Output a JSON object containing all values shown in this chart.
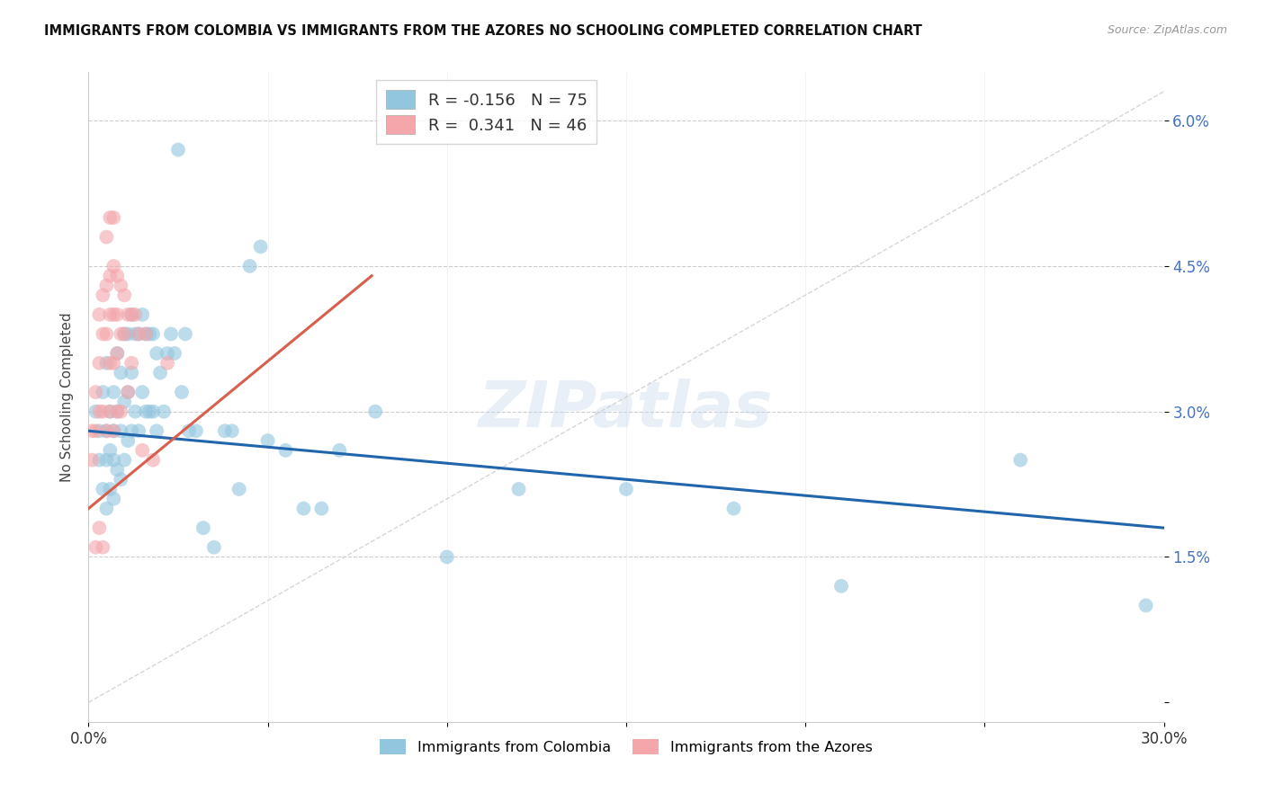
{
  "title": "IMMIGRANTS FROM COLOMBIA VS IMMIGRANTS FROM THE AZORES NO SCHOOLING COMPLETED CORRELATION CHART",
  "source": "Source: ZipAtlas.com",
  "ylabel": "No Schooling Completed",
  "ytick_vals": [
    0.0,
    0.015,
    0.03,
    0.045,
    0.06
  ],
  "ytick_labels": [
    "",
    "1.5%",
    "3.0%",
    "4.5%",
    "6.0%"
  ],
  "xtick_vals": [
    0.0,
    0.05,
    0.1,
    0.15,
    0.2,
    0.25,
    0.3
  ],
  "xtick_labels": [
    "0.0%",
    "",
    "",
    "",
    "",
    "",
    "30.0%"
  ],
  "xlim": [
    0.0,
    0.3
  ],
  "ylim": [
    -0.002,
    0.065
  ],
  "legend_blue_R": "-0.156",
  "legend_blue_N": "75",
  "legend_pink_R": "0.341",
  "legend_pink_N": "46",
  "blue_color": "#92c5de",
  "pink_color": "#f4a6aa",
  "blue_line_color": "#2166ac",
  "pink_line_color": "#d6604d",
  "diag_line_color": "#cccccc",
  "watermark": "ZIPatlas",
  "blue_line_x0": 0.0,
  "blue_line_y0": 0.028,
  "blue_line_x1": 0.3,
  "blue_line_y1": 0.018,
  "pink_line_x0": 0.0,
  "pink_line_y0": 0.02,
  "pink_line_x1": 0.079,
  "pink_line_y1": 0.044,
  "blue_scatter_x": [
    0.002,
    0.003,
    0.003,
    0.004,
    0.004,
    0.005,
    0.005,
    0.005,
    0.005,
    0.006,
    0.006,
    0.006,
    0.007,
    0.007,
    0.007,
    0.007,
    0.008,
    0.008,
    0.008,
    0.009,
    0.009,
    0.009,
    0.01,
    0.01,
    0.01,
    0.011,
    0.011,
    0.011,
    0.012,
    0.012,
    0.012,
    0.013,
    0.013,
    0.014,
    0.014,
    0.015,
    0.015,
    0.016,
    0.016,
    0.017,
    0.017,
    0.018,
    0.018,
    0.019,
    0.019,
    0.02,
    0.021,
    0.022,
    0.023,
    0.024,
    0.025,
    0.026,
    0.027,
    0.028,
    0.03,
    0.032,
    0.035,
    0.038,
    0.04,
    0.042,
    0.045,
    0.048,
    0.05,
    0.055,
    0.06,
    0.065,
    0.07,
    0.08,
    0.1,
    0.12,
    0.15,
    0.18,
    0.21,
    0.26,
    0.295
  ],
  "blue_scatter_y": [
    0.03,
    0.028,
    0.025,
    0.032,
    0.022,
    0.035,
    0.028,
    0.025,
    0.02,
    0.03,
    0.026,
    0.022,
    0.032,
    0.028,
    0.025,
    0.021,
    0.036,
    0.03,
    0.024,
    0.034,
    0.028,
    0.023,
    0.038,
    0.031,
    0.025,
    0.038,
    0.032,
    0.027,
    0.04,
    0.034,
    0.028,
    0.038,
    0.03,
    0.038,
    0.028,
    0.04,
    0.032,
    0.038,
    0.03,
    0.038,
    0.03,
    0.038,
    0.03,
    0.036,
    0.028,
    0.034,
    0.03,
    0.036,
    0.038,
    0.036,
    0.057,
    0.032,
    0.038,
    0.028,
    0.028,
    0.018,
    0.016,
    0.028,
    0.028,
    0.022,
    0.045,
    0.047,
    0.027,
    0.026,
    0.02,
    0.02,
    0.026,
    0.03,
    0.015,
    0.022,
    0.022,
    0.02,
    0.012,
    0.025,
    0.01
  ],
  "pink_scatter_x": [
    0.001,
    0.001,
    0.002,
    0.002,
    0.002,
    0.003,
    0.003,
    0.003,
    0.003,
    0.004,
    0.004,
    0.004,
    0.004,
    0.005,
    0.005,
    0.005,
    0.005,
    0.006,
    0.006,
    0.006,
    0.006,
    0.006,
    0.007,
    0.007,
    0.007,
    0.007,
    0.007,
    0.008,
    0.008,
    0.008,
    0.008,
    0.009,
    0.009,
    0.009,
    0.01,
    0.01,
    0.011,
    0.011,
    0.012,
    0.012,
    0.013,
    0.014,
    0.015,
    0.016,
    0.018,
    0.022
  ],
  "pink_scatter_y": [
    0.028,
    0.025,
    0.032,
    0.028,
    0.016,
    0.04,
    0.035,
    0.03,
    0.018,
    0.042,
    0.038,
    0.03,
    0.016,
    0.048,
    0.043,
    0.038,
    0.028,
    0.05,
    0.044,
    0.04,
    0.035,
    0.03,
    0.05,
    0.045,
    0.04,
    0.035,
    0.028,
    0.044,
    0.04,
    0.036,
    0.03,
    0.043,
    0.038,
    0.03,
    0.042,
    0.038,
    0.04,
    0.032,
    0.04,
    0.035,
    0.04,
    0.038,
    0.026,
    0.038,
    0.025,
    0.035
  ]
}
